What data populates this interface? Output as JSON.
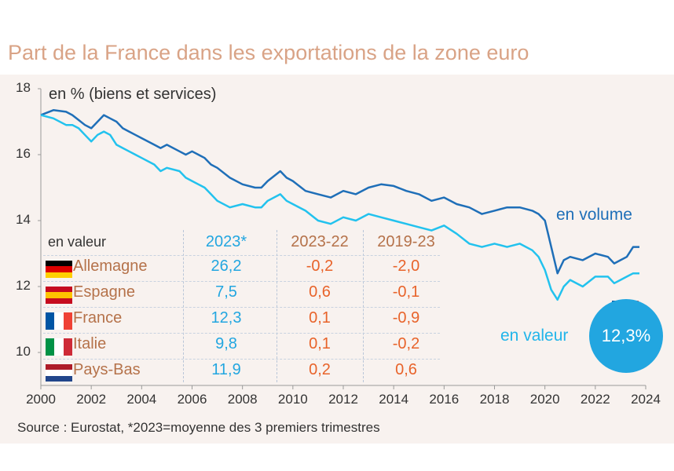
{
  "title": "Part de la France dans les exportations de la zone euro",
  "chart_data": {
    "type": "line",
    "title": "Part de la France dans les exportations de la zone euro",
    "ylabel": "en % (biens et services)",
    "xlabel": "",
    "xlim": [
      2000,
      2024
    ],
    "ylim": [
      9,
      18
    ],
    "yticks": [
      10,
      12,
      14,
      16,
      18
    ],
    "xticks": [
      2000,
      2002,
      2004,
      2006,
      2008,
      2010,
      2012,
      2014,
      2016,
      2018,
      2020,
      2022,
      2024
    ],
    "series": [
      {
        "name": "en volume",
        "color": "#1f6fb8",
        "x": [
          2000.0,
          2000.5,
          2001.0,
          2001.25,
          2001.5,
          2001.75,
          2002.0,
          2002.25,
          2002.5,
          2002.75,
          2003.0,
          2003.25,
          2003.5,
          2003.75,
          2004.0,
          2004.5,
          2004.75,
          2005.0,
          2005.5,
          2005.75,
          2006.0,
          2006.5,
          2006.75,
          2007.0,
          2007.5,
          2008.0,
          2008.5,
          2008.75,
          2009.0,
          2009.5,
          2009.75,
          2010.0,
          2010.5,
          2011.0,
          2011.5,
          2012.0,
          2012.5,
          2013.0,
          2013.5,
          2014.0,
          2014.5,
          2015.0,
          2015.5,
          2016.0,
          2016.5,
          2017.0,
          2017.5,
          2018.0,
          2018.5,
          2019.0,
          2019.5,
          2019.75,
          2020.0,
          2020.25,
          2020.5,
          2020.75,
          2021.0,
          2021.5,
          2022.0,
          2022.5,
          2022.75,
          2023.0,
          2023.25,
          2023.5,
          2023.75
        ],
        "values": [
          17.2,
          17.35,
          17.3,
          17.2,
          17.05,
          16.9,
          16.8,
          17.0,
          17.2,
          17.1,
          17.0,
          16.8,
          16.7,
          16.6,
          16.5,
          16.3,
          16.2,
          16.3,
          16.1,
          16.0,
          16.1,
          15.9,
          15.7,
          15.6,
          15.3,
          15.1,
          15.0,
          15.0,
          15.2,
          15.5,
          15.3,
          15.2,
          14.9,
          14.8,
          14.7,
          14.9,
          14.8,
          15.0,
          15.1,
          15.05,
          14.9,
          14.8,
          14.6,
          14.7,
          14.5,
          14.4,
          14.2,
          14.3,
          14.4,
          14.4,
          14.3,
          14.2,
          14.0,
          13.2,
          12.4,
          12.8,
          12.9,
          12.8,
          13.0,
          12.9,
          12.7,
          12.8,
          12.9,
          13.2,
          13.2
        ]
      },
      {
        "name": "en valeur",
        "color": "#22c2ee",
        "x": [
          2000.0,
          2000.5,
          2001.0,
          2001.25,
          2001.5,
          2001.75,
          2002.0,
          2002.25,
          2002.5,
          2002.75,
          2003.0,
          2003.25,
          2003.5,
          2003.75,
          2004.0,
          2004.5,
          2004.75,
          2005.0,
          2005.5,
          2005.75,
          2006.0,
          2006.5,
          2006.75,
          2007.0,
          2007.5,
          2008.0,
          2008.5,
          2008.75,
          2009.0,
          2009.5,
          2009.75,
          2010.0,
          2010.5,
          2011.0,
          2011.5,
          2012.0,
          2012.5,
          2013.0,
          2013.5,
          2014.0,
          2014.5,
          2015.0,
          2015.5,
          2016.0,
          2016.5,
          2017.0,
          2017.5,
          2018.0,
          2018.5,
          2019.0,
          2019.5,
          2019.75,
          2020.0,
          2020.25,
          2020.5,
          2020.75,
          2021.0,
          2021.5,
          2022.0,
          2022.5,
          2022.75,
          2023.0,
          2023.25,
          2023.5,
          2023.75
        ],
        "values": [
          17.2,
          17.1,
          16.9,
          16.9,
          16.8,
          16.6,
          16.4,
          16.6,
          16.7,
          16.6,
          16.3,
          16.2,
          16.1,
          16.0,
          15.9,
          15.7,
          15.5,
          15.6,
          15.5,
          15.3,
          15.2,
          15.0,
          14.8,
          14.6,
          14.4,
          14.5,
          14.4,
          14.4,
          14.6,
          14.8,
          14.6,
          14.5,
          14.3,
          14.0,
          13.9,
          14.1,
          14.0,
          14.2,
          14.1,
          14.0,
          13.9,
          13.8,
          13.7,
          13.85,
          13.6,
          13.3,
          13.2,
          13.3,
          13.2,
          13.3,
          13.1,
          12.9,
          12.5,
          11.9,
          11.6,
          12.0,
          12.2,
          12.0,
          12.3,
          12.3,
          12.1,
          12.2,
          12.3,
          12.4,
          12.4
        ]
      }
    ],
    "annotations": {
      "label_volume": "en volume",
      "label_valeur": "en valeur",
      "bubble": "12,3%"
    },
    "table": {
      "header": [
        "en valeur",
        "2023*",
        "2023-22",
        "2019-23"
      ],
      "rows": [
        {
          "country": "Allemagne",
          "v2023": "26,2",
          "d1": "-0,2",
          "d2": "-2,0",
          "flag": [
            "#000000",
            "#dd0000",
            "#ffce00"
          ],
          "flag_dir": "h"
        },
        {
          "country": "Espagne",
          "v2023": "7,5",
          "d1": "0,6",
          "d2": "-0,1",
          "flag": [
            "#c60b1e",
            "#ffc400",
            "#c60b1e"
          ],
          "flag_dir": "h"
        },
        {
          "country": "France",
          "v2023": "12,3",
          "d1": "0,1",
          "d2": "-0,9",
          "flag": [
            "#0055a4",
            "#ffffff",
            "#ef4135"
          ],
          "flag_dir": "v"
        },
        {
          "country": "Italie",
          "v2023": "9,8",
          "d1": "0,1",
          "d2": "-0,2",
          "flag": [
            "#009246",
            "#ffffff",
            "#ce2b37"
          ],
          "flag_dir": "v"
        },
        {
          "country": "Pays-Bas",
          "v2023": "11,9",
          "d1": "0,2",
          "d2": "0,6",
          "flag": [
            "#ae1c28",
            "#ffffff",
            "#21468b"
          ],
          "flag_dir": "h"
        }
      ]
    }
  },
  "source": "Source : Eurostat,  *2023=moyenne des 3 premiers trimestres"
}
